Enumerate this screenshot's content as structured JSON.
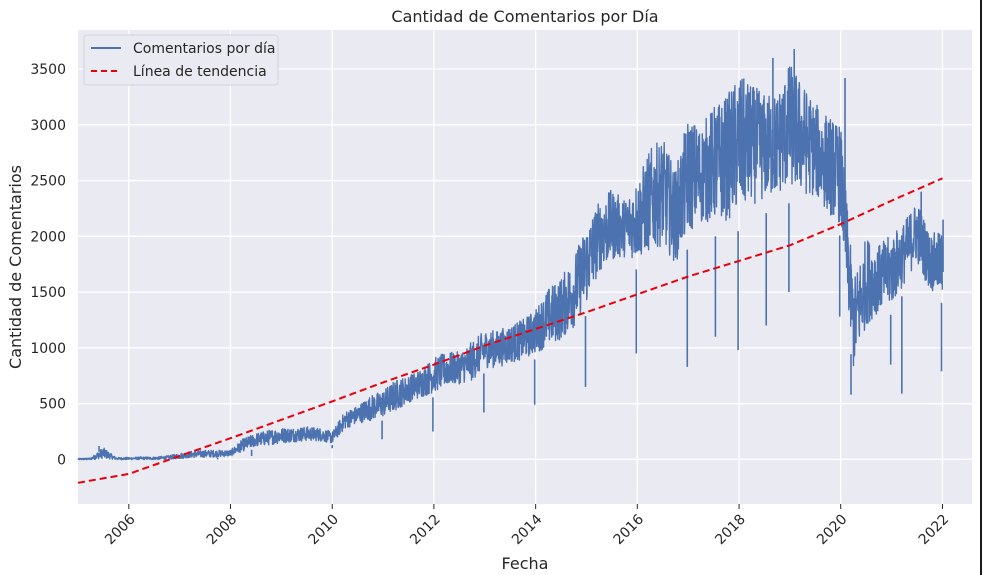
{
  "chart_data": {
    "type": "line",
    "title": "Cantidad de Comentarios por Día",
    "xlabel": "Fecha",
    "ylabel": "Cantidad de Comentarios",
    "xlim": [
      "2005-01-01",
      "2022-08-01"
    ],
    "ylim": [
      -400,
      3850
    ],
    "grid": true,
    "background": "#eaeaf2",
    "legend_position": "top-left",
    "x_ticks": [
      "2006",
      "2008",
      "2010",
      "2012",
      "2014",
      "2016",
      "2018",
      "2020",
      "2022"
    ],
    "y_ticks": [
      0,
      500,
      1000,
      1500,
      2000,
      2500,
      3000,
      3500
    ],
    "series": [
      {
        "name": "Comentarios por día",
        "color": "#4c72b0",
        "style": "solid",
        "x": [
          "2005-01-01",
          "2005-04-01",
          "2005-07-01",
          "2005-10-01",
          "2006-01-01",
          "2006-04-01",
          "2006-07-01",
          "2006-10-01",
          "2007-01-01",
          "2007-04-01",
          "2007-07-01",
          "2007-10-01",
          "2008-01-01",
          "2008-04-01",
          "2008-07-01",
          "2008-10-01",
          "2009-01-01",
          "2009-04-01",
          "2009-07-01",
          "2009-10-01",
          "2010-01-01",
          "2010-04-01",
          "2010-07-01",
          "2010-10-01",
          "2011-01-01",
          "2011-04-01",
          "2011-07-01",
          "2011-10-01",
          "2012-01-01",
          "2012-04-01",
          "2012-07-01",
          "2012-10-01",
          "2013-01-01",
          "2013-04-01",
          "2013-07-01",
          "2013-10-01",
          "2014-01-01",
          "2014-04-01",
          "2014-07-01",
          "2014-10-01",
          "2015-01-01",
          "2015-04-01",
          "2015-07-01",
          "2015-10-01",
          "2016-01-01",
          "2016-04-01",
          "2016-07-01",
          "2016-10-01",
          "2017-01-01",
          "2017-04-01",
          "2017-07-01",
          "2017-10-01",
          "2018-01-01",
          "2018-04-01",
          "2018-07-01",
          "2018-10-01",
          "2019-01-01",
          "2019-04-01",
          "2019-07-01",
          "2019-10-01",
          "2020-01-01",
          "2020-04-01",
          "2020-07-01",
          "2020-10-01",
          "2021-01-01",
          "2021-04-01",
          "2021-07-01",
          "2021-10-01",
          "2022-01-01"
        ],
        "low": [
          -5,
          -5,
          -5,
          -5,
          -5,
          -5,
          -5,
          -5,
          0,
          10,
          10,
          15,
          20,
          60,
          100,
          110,
          130,
          140,
          150,
          150,
          130,
          250,
          300,
          320,
          350,
          400,
          480,
          520,
          560,
          620,
          640,
          660,
          780,
          780,
          820,
          850,
          900,
          950,
          1000,
          1100,
          1300,
          1600,
          1700,
          1750,
          1700,
          1750,
          1800,
          1650,
          1900,
          2000,
          2000,
          2000,
          2050,
          2150,
          2200,
          2250,
          2300,
          2250,
          2250,
          2100,
          2000,
          700,
          1100,
          1250,
          1300,
          1500,
          1700,
          1450,
          1400
        ],
        "high": [
          10,
          15,
          120,
          20,
          20,
          25,
          25,
          35,
          60,
          80,
          90,
          90,
          90,
          200,
          250,
          280,
          300,
          300,
          310,
          300,
          260,
          450,
          500,
          600,
          650,
          750,
          780,
          850,
          950,
          1000,
          1000,
          1100,
          1200,
          1200,
          1250,
          1300,
          1400,
          1600,
          1700,
          1900,
          2200,
          2400,
          2500,
          2400,
          2600,
          2900,
          3000,
          2700,
          3200,
          3100,
          3300,
          3400,
          3600,
          3500,
          3400,
          3400,
          3700,
          3500,
          3300,
          3200,
          3100,
          1700,
          2100,
          2000,
          2100,
          2200,
          2400,
          2100,
          2100
        ],
        "dips": [
          {
            "x": "2007-10-01",
            "y": 0
          },
          {
            "x": "2008-06-01",
            "y": 30
          },
          {
            "x": "2010-01-01",
            "y": 100
          },
          {
            "x": "2010-12-25",
            "y": 180
          },
          {
            "x": "2011-12-25",
            "y": 250
          },
          {
            "x": "2012-12-25",
            "y": 420
          },
          {
            "x": "2013-12-25",
            "y": 490
          },
          {
            "x": "2014-12-25",
            "y": 650
          },
          {
            "x": "2015-12-25",
            "y": 950
          },
          {
            "x": "2016-12-25",
            "y": 830
          },
          {
            "x": "2017-07-15",
            "y": 1100
          },
          {
            "x": "2017-12-25",
            "y": 980
          },
          {
            "x": "2018-07-15",
            "y": 1200
          },
          {
            "x": "2018-12-25",
            "y": 1500
          },
          {
            "x": "2019-12-25",
            "y": 1280
          },
          {
            "x": "2020-03-15",
            "y": 580
          },
          {
            "x": "2020-12-25",
            "y": 850
          },
          {
            "x": "2021-03-15",
            "y": 590
          },
          {
            "x": "2021-12-25",
            "y": 790
          }
        ],
        "peaks": [
          {
            "x": "2005-06-01",
            "y": 120
          },
          {
            "x": "2018-09-01",
            "y": 3600
          },
          {
            "x": "2019-02-01",
            "y": 3680
          },
          {
            "x": "2020-02-01",
            "y": 3420
          },
          {
            "x": "2021-08-01",
            "y": 2400
          },
          {
            "x": "2022-01-05",
            "y": 2150
          }
        ]
      },
      {
        "name": "Línea de tendencia",
        "color": "#e8000b",
        "style": "dashed",
        "x": [
          "2005-01-01",
          "2006-01-01",
          "2007-01-01",
          "2008-01-01",
          "2009-01-01",
          "2010-01-01",
          "2011-01-01",
          "2012-01-01",
          "2013-01-01",
          "2014-01-01",
          "2015-01-01",
          "2016-01-01",
          "2017-01-01",
          "2018-01-01",
          "2019-01-01",
          "2020-01-01",
          "2021-01-01",
          "2022-01-01"
        ],
        "values": [
          -210,
          -130,
          30,
          190,
          355,
          520,
          690,
          850,
          1020,
          1170,
          1320,
          1480,
          1640,
          1780,
          1920,
          2110,
          2320,
          2520
        ]
      }
    ]
  }
}
